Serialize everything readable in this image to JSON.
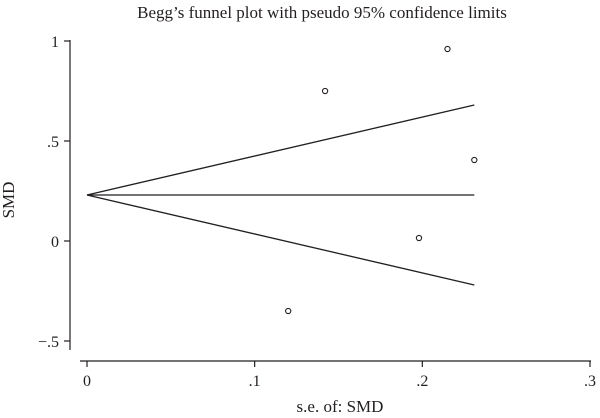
{
  "chart_data": {
    "type": "scatter",
    "title": "Begg’s funnel plot with pseudo 95% confidence limits",
    "xlabel": "s.e. of: SMD",
    "ylabel": "SMD",
    "xlim": [
      0,
      0.3
    ],
    "ylim": [
      -0.5,
      1
    ],
    "x_ticks": [
      {
        "value": 0,
        "label": "0"
      },
      {
        "value": 0.1,
        "label": ".1"
      },
      {
        "value": 0.2,
        "label": ".2"
      },
      {
        "value": 0.3,
        "label": ".3"
      }
    ],
    "y_ticks": [
      {
        "value": -0.5,
        "label": "−.5"
      },
      {
        "value": 0,
        "label": "0"
      },
      {
        "value": 0.5,
        "label": ".5"
      },
      {
        "value": 1,
        "label": "1"
      }
    ],
    "grid": false,
    "points": [
      {
        "x": 0.142,
        "y": 0.75
      },
      {
        "x": 0.215,
        "y": 0.96
      },
      {
        "x": 0.231,
        "y": 0.405
      },
      {
        "x": 0.198,
        "y": 0.015
      },
      {
        "x": 0.12,
        "y": -0.35
      }
    ],
    "pooled_line": {
      "x": [
        0,
        0.231
      ],
      "y": [
        0.23,
        0.23
      ]
    },
    "upper_limit": {
      "x": [
        0,
        0.231
      ],
      "y": [
        0.23,
        0.68
      ]
    },
    "lower_limit": {
      "x": [
        0,
        0.231
      ],
      "y": [
        0.23,
        -0.22
      ]
    }
  }
}
